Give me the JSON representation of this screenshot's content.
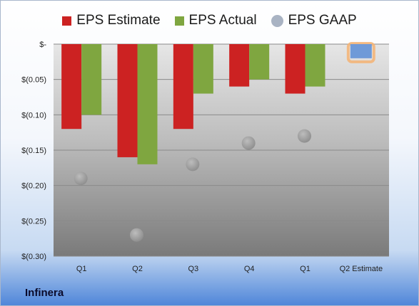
{
  "chart_data": {
    "type": "bar",
    "categories": [
      "Q1",
      "Q2",
      "Q3",
      "Q4",
      "Q1",
      "Q2 Estimate"
    ],
    "series": [
      {
        "name": "EPS Estimate",
        "color": "#cc2222",
        "values": [
          -0.12,
          -0.16,
          -0.12,
          -0.06,
          -0.07,
          null
        ]
      },
      {
        "name": "EPS Actual",
        "color": "#7fa640",
        "values": [
          -0.1,
          -0.17,
          -0.07,
          -0.05,
          -0.06,
          null
        ]
      },
      {
        "name": "EPS GAAP",
        "color": "#a9b3c3",
        "marker": "circle",
        "values": [
          -0.19,
          -0.27,
          -0.17,
          -0.14,
          -0.13,
          null
        ]
      }
    ],
    "highlight": {
      "category": "Q2 Estimate",
      "value": -0.02,
      "color": "#6f9ad8",
      "outline": "#f5b373"
    },
    "ylim": [
      -0.3,
      0.0
    ],
    "yticks": [
      {
        "value": 0.0,
        "label": "$-"
      },
      {
        "value": -0.05,
        "label": "$(0.05)"
      },
      {
        "value": -0.1,
        "label": "$(0.10)"
      },
      {
        "value": -0.15,
        "label": "$(0.15)"
      },
      {
        "value": -0.2,
        "label": "$(0.20)"
      },
      {
        "value": -0.25,
        "label": "$(0.25)"
      },
      {
        "value": -0.3,
        "label": "$(0.30)"
      }
    ],
    "grid": true,
    "legend_position": "top",
    "xlabel": "",
    "ylabel": ""
  },
  "footer": {
    "company": "Infinera"
  }
}
